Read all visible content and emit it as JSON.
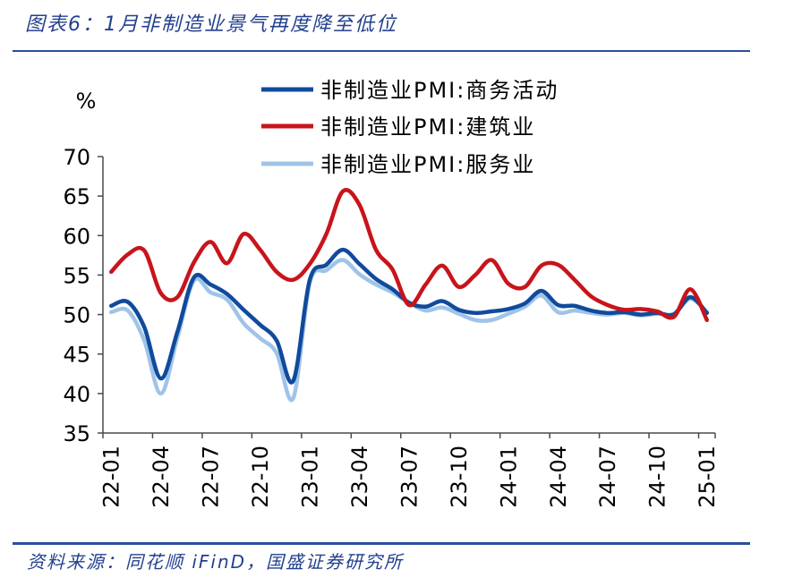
{
  "theme": {
    "accent": "#23408e",
    "rule": "#2a4f9e"
  },
  "source": "资料来源：同花顺 iFinD，国盛证券研究所",
  "chart_data": {
    "type": "line",
    "title": "图表6：1月非制造业景气再度降至低位",
    "ylabel": "%",
    "ylim": [
      35,
      70
    ],
    "yticks": [
      70,
      65,
      60,
      55,
      50,
      45,
      40,
      35
    ],
    "x_ticks": [
      "22-01",
      "22-04",
      "22-07",
      "22-10",
      "23-01",
      "23-04",
      "23-07",
      "23-10",
      "24-01",
      "24-04",
      "24-07",
      "24-10",
      "25-01"
    ],
    "grid": false,
    "legend": "top",
    "smooth": true,
    "series": [
      {
        "name": "非制造业PMI:商务活动",
        "color": "#104a9c",
        "values": [
          51.1,
          51.6,
          48.4,
          41.9,
          47.8,
          54.7,
          53.8,
          52.6,
          50.6,
          48.7,
          46.7,
          41.6,
          54.4,
          56.3,
          58.2,
          56.4,
          54.5,
          53.2,
          51.5,
          51.0,
          51.7,
          50.6,
          50.2,
          50.4,
          50.7,
          51.4,
          53.0,
          51.2,
          51.1,
          50.5,
          50.2,
          50.3,
          50.0,
          50.2,
          50.0,
          52.2,
          50.2
        ]
      },
      {
        "name": "非制造业PMI:建筑业",
        "color": "#c8141b",
        "values": [
          55.4,
          57.6,
          58.1,
          52.7,
          52.2,
          56.6,
          59.2,
          56.5,
          60.2,
          58.2,
          55.4,
          54.4,
          56.4,
          60.2,
          65.6,
          63.9,
          58.2,
          55.7,
          51.2,
          53.8,
          56.2,
          53.5,
          55.0,
          56.9,
          53.9,
          53.5,
          56.2,
          56.3,
          54.4,
          52.3,
          51.2,
          50.6,
          50.7,
          50.4,
          49.7,
          53.2,
          49.3
        ]
      },
      {
        "name": "非制造业PMI:服务业",
        "color": "#a0c4e8",
        "values": [
          50.3,
          50.5,
          46.7,
          40.0,
          47.1,
          54.3,
          52.8,
          51.9,
          48.9,
          47.0,
          45.1,
          39.4,
          54.0,
          55.6,
          56.9,
          55.1,
          53.8,
          52.8,
          51.5,
          50.5,
          50.9,
          50.1,
          49.3,
          49.3,
          50.1,
          51.0,
          52.4,
          50.3,
          50.5,
          50.2,
          50.0,
          50.2,
          49.9,
          50.1,
          50.1,
          52.0,
          50.3
        ]
      }
    ]
  }
}
